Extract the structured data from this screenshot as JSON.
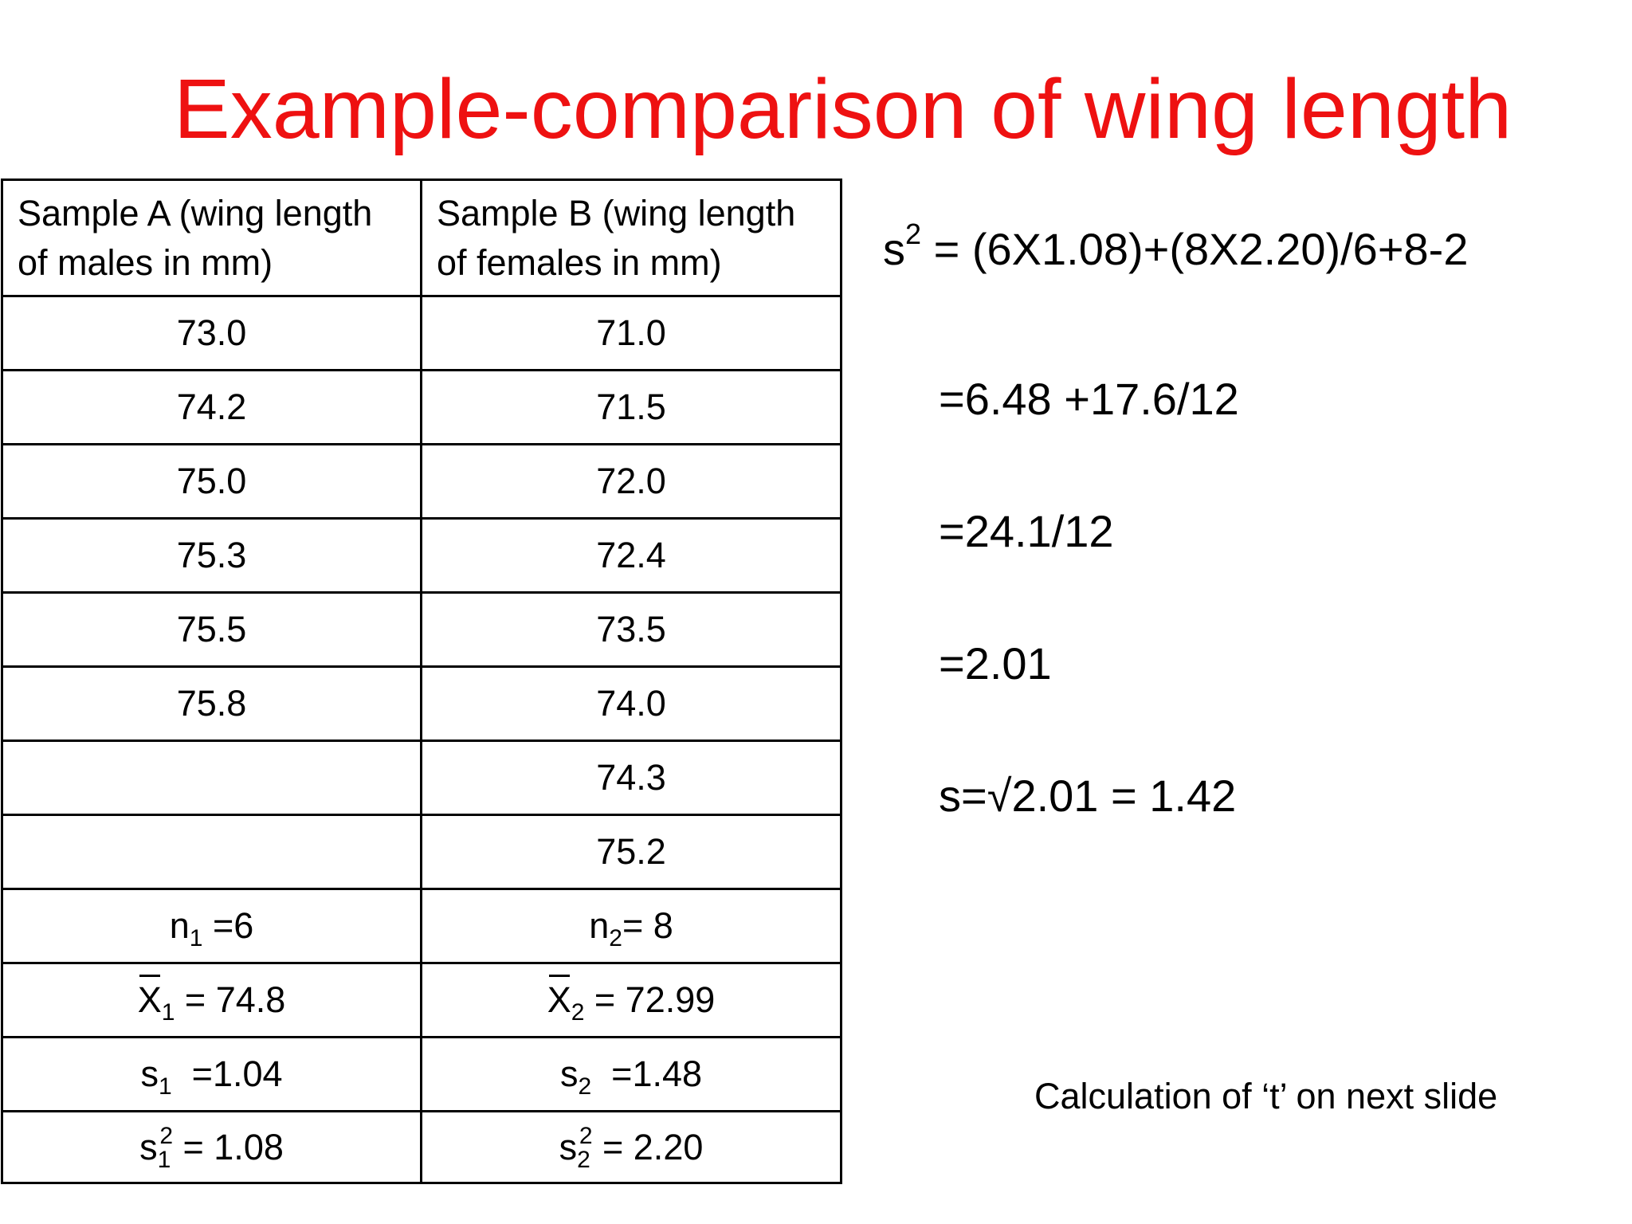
{
  "title": "Example-comparison of wing length",
  "table": {
    "headers": [
      {
        "line1": "Sample A (wing length",
        "line2": "of males in mm)"
      },
      {
        "line1": "Sample B (wing length",
        "line2": "of females in mm)"
      }
    ],
    "rows": [
      [
        "73.0",
        "71.0"
      ],
      [
        "74.2",
        "71.5"
      ],
      [
        "75.0",
        "72.0"
      ],
      [
        "75.3",
        "72.4"
      ],
      [
        "75.5",
        "73.5"
      ],
      [
        "75.8",
        "74.0"
      ],
      [
        "",
        "74.3"
      ],
      [
        "",
        "75.2"
      ]
    ],
    "stats": {
      "n": {
        "a_sym": "n",
        "a_sub": "1",
        "a_val": " =6",
        "b_sym": "n",
        "b_sub": "2",
        "b_val": "= 8"
      },
      "mean": {
        "a_sym": "X",
        "a_sub": "1",
        "a_val": " = 74.8",
        "b_sym": "X",
        "b_sub": "2",
        "b_val": " = 72.99"
      },
      "sd": {
        "a_sym": "s",
        "a_sub": "1",
        "a_val": "  =1.04",
        "b_sym": "s",
        "b_sub": "2",
        "b_val": "  =1.48"
      },
      "var": {
        "a_sym": "s",
        "a_sub": "1",
        "a_sup": "2",
        "a_val": " = 1.08",
        "b_sym": "s",
        "b_sub": "2",
        "b_sup": "2",
        "b_val": " = 2.20"
      }
    }
  },
  "formulas": {
    "line1_sym": "s",
    "line1_sup": "2",
    "line1_rest": " = (6X1.08)+(8X2.20)/6+8-2",
    "line2": "=6.48 +17.6/12",
    "line3": "=24.1/12",
    "line4": "=2.01",
    "line5": "s=√2.01 = 1.42"
  },
  "note": "Calculation of ‘t’ on next slide",
  "colors": {
    "title": "#ee1111",
    "text": "#000000",
    "background": "#ffffff"
  }
}
